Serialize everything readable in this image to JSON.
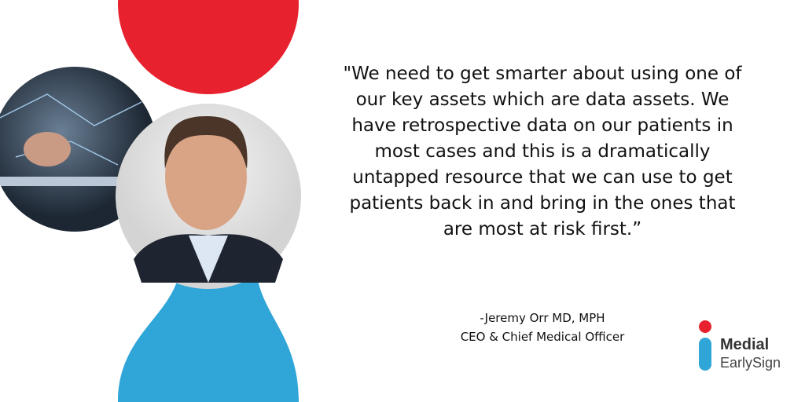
{
  "quote": {
    "lines": [
      "\"We need to get smarter about using one of",
      "our key assets which are data assets. We",
      "have retrospective data on our patients in",
      "most cases and this is a dramatically",
      "untapped resource that we can use to get",
      "patients back in and bring in the ones that",
      "are most at risk first.”"
    ]
  },
  "author": {
    "name": "-Jeremy Orr MD, MPH",
    "role": "CEO & Chief Medical Officer"
  },
  "logo": {
    "name": "Medial",
    "sub": "EarlySign"
  }
}
